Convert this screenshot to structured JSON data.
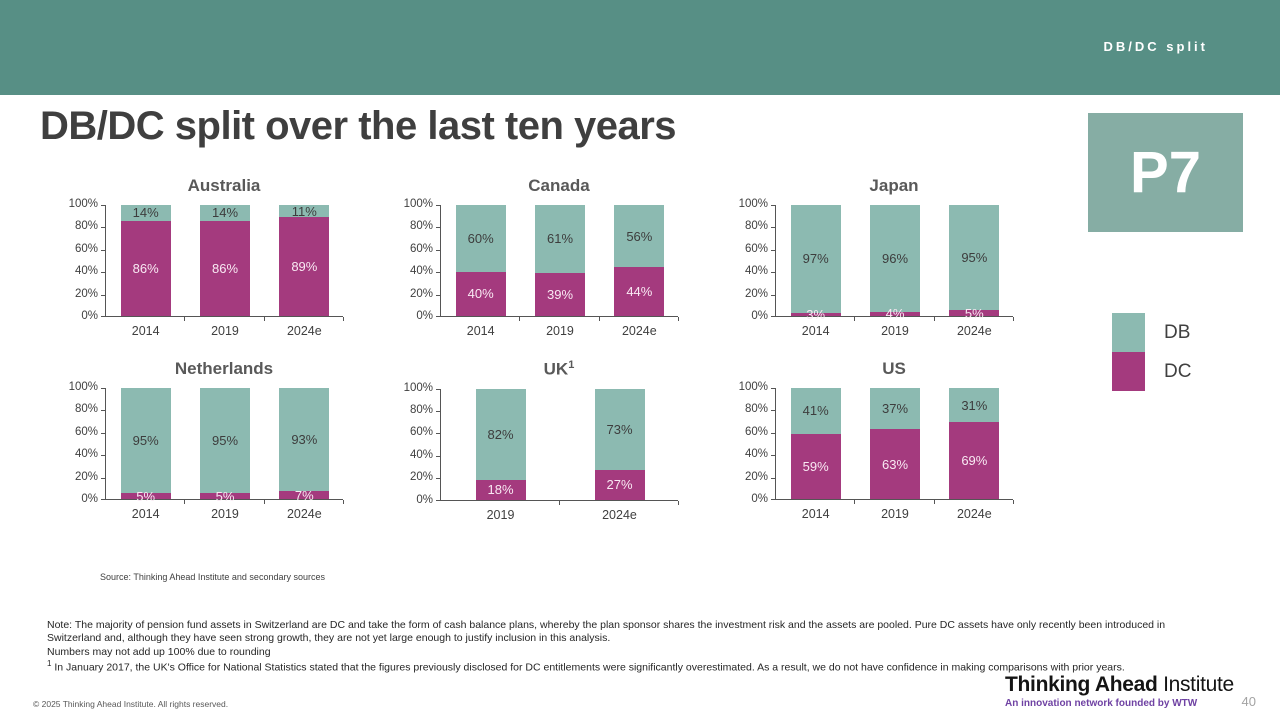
{
  "header": {
    "tab_label": "DB/DC split"
  },
  "title": "DB/DC split over the last ten years",
  "badge": "P7",
  "colors": {
    "band_teal": "#578f85",
    "badge_teal": "#86ada4",
    "db_teal": "#8cbab1",
    "dc_magenta": "#a43a7e",
    "db_label_text": "#3d3d3d",
    "dc_label_text": "#f9e9f3",
    "axis": "#555555",
    "tagline_purple": "#6f42a3"
  },
  "legend": [
    {
      "label": "DB",
      "color_key": "db_teal"
    },
    {
      "label": "DC",
      "color_key": "dc_magenta"
    }
  ],
  "chart_data": [
    {
      "type": "bar",
      "stacked": true,
      "title": "Australia",
      "categories": [
        "2014",
        "2019",
        "2024e"
      ],
      "series": [
        {
          "name": "DB",
          "values": [
            14,
            14,
            11
          ]
        },
        {
          "name": "DC",
          "values": [
            86,
            86,
            89
          ]
        }
      ],
      "ylim": [
        0,
        100
      ],
      "yticks": [
        "100%",
        "80%",
        "60%",
        "40%",
        "20%",
        "0%"
      ],
      "grid": false,
      "unit": "%"
    },
    {
      "type": "bar",
      "stacked": true,
      "title": "Canada",
      "categories": [
        "2014",
        "2019",
        "2024e"
      ],
      "series": [
        {
          "name": "DB",
          "values": [
            60,
            61,
            56
          ]
        },
        {
          "name": "DC",
          "values": [
            40,
            39,
            44
          ]
        }
      ],
      "ylim": [
        0,
        100
      ],
      "yticks": [
        "100%",
        "80%",
        "60%",
        "40%",
        "20%",
        "0%"
      ],
      "grid": false,
      "unit": "%"
    },
    {
      "type": "bar",
      "stacked": true,
      "title": "Japan",
      "categories": [
        "2014",
        "2019",
        "2024e"
      ],
      "series": [
        {
          "name": "DB",
          "values": [
            97,
            96,
            95
          ]
        },
        {
          "name": "DC",
          "values": [
            3,
            4,
            5
          ]
        }
      ],
      "ylim": [
        0,
        100
      ],
      "yticks": [
        "100%",
        "80%",
        "60%",
        "40%",
        "20%",
        "0%"
      ],
      "grid": false,
      "unit": "%"
    },
    {
      "type": "bar",
      "stacked": true,
      "title": "Netherlands",
      "categories": [
        "2014",
        "2019",
        "2024e"
      ],
      "series": [
        {
          "name": "DB",
          "values": [
            95,
            95,
            93
          ]
        },
        {
          "name": "DC",
          "values": [
            5,
            5,
            7
          ]
        }
      ],
      "ylim": [
        0,
        100
      ],
      "yticks": [
        "100%",
        "80%",
        "60%",
        "40%",
        "20%",
        "0%"
      ],
      "grid": false,
      "unit": "%"
    },
    {
      "type": "bar",
      "stacked": true,
      "title": "UK",
      "title_sup": "1",
      "categories": [
        "2019",
        "2024e"
      ],
      "series": [
        {
          "name": "DB",
          "values": [
            82,
            73
          ]
        },
        {
          "name": "DC",
          "values": [
            18,
            27
          ]
        }
      ],
      "ylim": [
        0,
        100
      ],
      "yticks": [
        "100%",
        "80%",
        "60%",
        "40%",
        "20%",
        "0%"
      ],
      "grid": false,
      "unit": "%"
    },
    {
      "type": "bar",
      "stacked": true,
      "title": "US",
      "categories": [
        "2014",
        "2019",
        "2024e"
      ],
      "series": [
        {
          "name": "DB",
          "values": [
            41,
            37,
            31
          ]
        },
        {
          "name": "DC",
          "values": [
            59,
            63,
            69
          ]
        }
      ],
      "ylim": [
        0,
        100
      ],
      "yticks": [
        "100%",
        "80%",
        "60%",
        "40%",
        "20%",
        "0%"
      ],
      "grid": false,
      "unit": "%"
    }
  ],
  "source": "Source: Thinking Ahead Institute and secondary sources",
  "notes": {
    "note": "Note: The majority of pension fund assets in Switzerland are DC and take the form of cash balance plans, whereby the plan sponsor shares the investment risk and the assets are pooled. Pure DC assets have only recently been introduced in Switzerland and, although they have seen strong growth, they are not yet large enough to justify inclusion in this analysis.",
    "rounding": "Numbers may not add up 100% due to rounding",
    "footnote_sup": "1",
    "footnote": " In January 2017, the UK's Office for National Statistics stated that the figures previously disclosed for DC entitlements were significantly overestimated. As a result, we do not have confidence in making comparisons with prior years."
  },
  "footer": {
    "copyright": "© 2025 Thinking Ahead Institute. All rights reserved.",
    "logo_bold": "Thinking Ahead",
    "logo_regular": " Institute",
    "tagline": "An innovation network founded by WTW",
    "page_number": "40"
  }
}
